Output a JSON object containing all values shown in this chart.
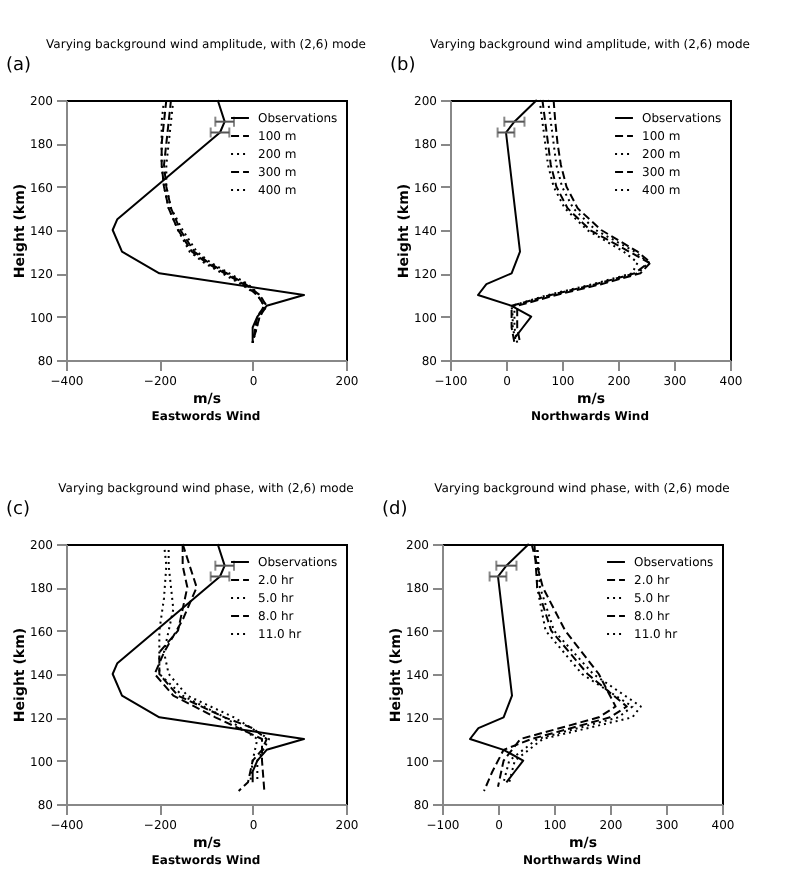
{
  "chart_data": [
    {
      "type": "line",
      "title": "Varying background wind amplitude, with (2,6) mode",
      "xlabel": "m/s",
      "ylabel": "Height (km)",
      "annotations": [
        "(a)",
        "Eastwords Wind"
      ],
      "xlim": [
        -400,
        200
      ],
      "xticks": [
        -400,
        -200,
        0,
        200
      ],
      "ylim": [
        80,
        200
      ],
      "yticks": [
        80,
        100,
        120,
        140,
        160,
        180,
        200
      ],
      "legend": "top right",
      "grid": false,
      "series": [
        {
          "name": "Observations",
          "color": "#000000",
          "line_style": "solid",
          "x": [
            -75,
            -60,
            -70,
            -290,
            -300,
            -280,
            -200,
            110,
            30,
            10,
            0,
            0
          ],
          "values": [
            200,
            190,
            185,
            145,
            140,
            130,
            120,
            110,
            105,
            100,
            95,
            88
          ],
          "xerrors": [
            null,
            20,
            20,
            null,
            null,
            null,
            null,
            null,
            null,
            null,
            null,
            null
          ]
        },
        {
          "name": "100 m",
          "color": "#000000",
          "line_style": "dashed",
          "x": [
            -185,
            -190,
            -195,
            -195,
            -190,
            -180,
            -160,
            -130,
            -100,
            -60,
            -20,
            10,
            25,
            10,
            0
          ],
          "values": [
            200,
            190,
            180,
            170,
            160,
            150,
            140,
            130,
            125,
            120,
            115,
            110,
            105,
            100,
            88
          ]
        },
        {
          "name": "200 m",
          "color": "#000000",
          "line_style": "dotted",
          "x": [
            -190,
            -195,
            -195,
            -195,
            -190,
            -180,
            -160,
            -135,
            -105,
            -65,
            -25,
            10,
            25,
            10,
            0
          ],
          "values": [
            200,
            190,
            180,
            170,
            160,
            150,
            140,
            130,
            125,
            120,
            115,
            110,
            105,
            100,
            88
          ]
        },
        {
          "name": "300 m",
          "color": "#000000",
          "line_style": "dashed",
          "x": [
            -175,
            -180,
            -185,
            -190,
            -185,
            -175,
            -155,
            -125,
            -95,
            -55,
            -15,
            15,
            30,
            15,
            0
          ],
          "values": [
            200,
            190,
            180,
            170,
            160,
            150,
            140,
            130,
            125,
            120,
            115,
            110,
            105,
            100,
            88
          ]
        },
        {
          "name": "400 m",
          "color": "#000000",
          "line_style": "dotted",
          "x": [
            -170,
            -175,
            -180,
            -185,
            -185,
            -175,
            -150,
            -120,
            -90,
            -50,
            -10,
            15,
            30,
            15,
            0
          ],
          "values": [
            200,
            190,
            180,
            170,
            160,
            150,
            140,
            130,
            125,
            120,
            115,
            110,
            105,
            100,
            88
          ]
        }
      ]
    },
    {
      "type": "line",
      "title": "Varying background wind amplitude, with (2,6) mode",
      "xlabel": "m/s",
      "ylabel": "Height (km)",
      "annotations": [
        "(b)",
        "Northwards Wind"
      ],
      "xlim": [
        -100,
        400
      ],
      "xticks": [
        -100,
        0,
        100,
        200,
        300,
        400
      ],
      "ylim": [
        80,
        200
      ],
      "yticks": [
        80,
        100,
        120,
        140,
        160,
        180,
        200
      ],
      "legend": "top right",
      "grid": false,
      "series": [
        {
          "name": "Observations",
          "color": "#000000",
          "line_style": "solid",
          "x": [
            55,
            15,
            0,
            25,
            10,
            -35,
            -50,
            10,
            45,
            30,
            15
          ],
          "values": [
            200,
            190,
            185,
            130,
            120,
            115,
            110,
            105,
            100,
            95,
            90
          ],
          "xerrors": [
            null,
            18,
            15,
            null,
            null,
            null,
            null,
            null,
            null,
            null,
            null
          ]
        },
        {
          "name": "100 m",
          "color": "#000000",
          "line_style": "dashed",
          "x": [
            65,
            70,
            75,
            80,
            90,
            110,
            150,
            220,
            255,
            230,
            160,
            80,
            10,
            10,
            10,
            15
          ],
          "values": [
            200,
            190,
            180,
            170,
            160,
            150,
            140,
            130,
            125,
            120,
            115,
            110,
            105,
            100,
            95,
            88
          ]
        },
        {
          "name": "200 m",
          "color": "#000000",
          "line_style": "dotted",
          "x": [
            75,
            80,
            85,
            90,
            100,
            120,
            160,
            230,
            255,
            235,
            165,
            85,
            15,
            15,
            15,
            20
          ],
          "values": [
            200,
            190,
            180,
            170,
            160,
            150,
            140,
            130,
            125,
            120,
            115,
            110,
            105,
            100,
            95,
            88
          ]
        },
        {
          "name": "300 m",
          "color": "#000000",
          "line_style": "dashed",
          "x": [
            85,
            88,
            92,
            98,
            108,
            128,
            170,
            235,
            258,
            240,
            170,
            90,
            20,
            20,
            20,
            25
          ],
          "values": [
            200,
            190,
            180,
            170,
            160,
            150,
            140,
            130,
            125,
            120,
            115,
            110,
            105,
            100,
            95,
            88
          ]
        },
        {
          "name": "400 m",
          "color": "#000000",
          "line_style": "dotted",
          "x": [
            60,
            65,
            70,
            75,
            85,
            105,
            145,
            210,
            235,
            225,
            155,
            75,
            10,
            12,
            12,
            18
          ],
          "values": [
            200,
            190,
            180,
            170,
            160,
            150,
            140,
            130,
            125,
            120,
            115,
            110,
            105,
            100,
            95,
            88
          ]
        }
      ]
    },
    {
      "type": "line",
      "title": "Varying background wind phase, with (2,6) mode",
      "xlabel": "m/s",
      "ylabel": "Height (km)",
      "annotations": [
        "(c)",
        "Eastwords Wind"
      ],
      "xlim": [
        -400,
        200
      ],
      "xticks": [
        -400,
        -200,
        0,
        200
      ],
      "ylim": [
        80,
        200
      ],
      "yticks": [
        80,
        100,
        120,
        140,
        160,
        180,
        200
      ],
      "legend": "top right",
      "grid": false,
      "series": [
        {
          "name": "Observations",
          "color": "#000000",
          "line_style": "solid",
          "x": [
            -75,
            -60,
            -70,
            -290,
            -300,
            -280,
            -200,
            110,
            30,
            10,
            0,
            0
          ],
          "values": [
            200,
            190,
            185,
            145,
            140,
            130,
            120,
            110,
            105,
            100,
            95,
            90
          ],
          "xerrors": [
            null,
            20,
            20,
            null,
            null,
            null,
            null,
            null,
            null,
            null,
            null,
            null
          ]
        },
        {
          "name": "2.0 hr",
          "color": "#000000",
          "line_style": "dashed",
          "x": [
            -150,
            -150,
            -140,
            -150,
            -160,
            -200,
            -200,
            -160,
            -60,
            0,
            30,
            20,
            0,
            -10,
            -30
          ],
          "values": [
            200,
            190,
            180,
            170,
            160,
            150,
            140,
            130,
            120,
            115,
            110,
            105,
            100,
            90,
            86
          ]
        },
        {
          "name": "5.0 hr",
          "color": "#000000",
          "line_style": "dotted",
          "x": [
            -180,
            -180,
            -170,
            -190,
            -180,
            -140,
            -40,
            35,
            10,
            10
          ],
          "values": [
            200,
            190,
            170,
            150,
            140,
            130,
            120,
            110,
            100,
            90
          ]
        },
        {
          "name": "8.0 hr",
          "color": "#000000",
          "line_style": "dashed",
          "x": [
            -150,
            -120,
            -150,
            -190,
            -210,
            -170,
            -80,
            20,
            20,
            25
          ],
          "values": [
            200,
            180,
            165,
            150,
            140,
            130,
            120,
            110,
            100,
            86
          ]
        },
        {
          "name": "11.0 hr",
          "color": "#000000",
          "line_style": "dotted",
          "x": [
            -190,
            -185,
            -190,
            -200,
            -200,
            -150,
            -60,
            10,
            0,
            -5
          ],
          "values": [
            200,
            190,
            175,
            160,
            140,
            130,
            120,
            110,
            100,
            90
          ]
        }
      ]
    },
    {
      "type": "line",
      "title": "Varying background wind phase, with (2,6) mode",
      "xlabel": "m/s",
      "ylabel": "Height (km)",
      "annotations": [
        "(d)",
        "Northwards Wind"
      ],
      "xlim": [
        -100,
        400
      ],
      "xticks": [
        -100,
        0,
        100,
        200,
        300,
        400
      ],
      "ylim": [
        80,
        200
      ],
      "yticks": [
        80,
        100,
        120,
        140,
        160,
        180,
        200
      ],
      "legend": "top right",
      "grid": false,
      "series": [
        {
          "name": "Observations",
          "color": "#000000",
          "line_style": "solid",
          "x": [
            55,
            15,
            0,
            25,
            10,
            -35,
            -50,
            10,
            45,
            30,
            15
          ],
          "values": [
            200,
            190,
            185,
            130,
            120,
            115,
            110,
            105,
            100,
            95,
            90
          ],
          "xerrors": [
            null,
            18,
            15,
            null,
            null,
            null,
            null,
            null,
            null,
            null,
            null
          ]
        },
        {
          "name": "2.0 hr",
          "color": "#000000",
          "line_style": "dashed",
          "x": [
            65,
            70,
            95,
            160,
            230,
            200,
            60,
            10,
            -10,
            -25
          ],
          "values": [
            200,
            180,
            160,
            140,
            125,
            120,
            110,
            105,
            95,
            86
          ]
        },
        {
          "name": "5.0 hr",
          "color": "#000000",
          "line_style": "dotted",
          "x": [
            70,
            75,
            100,
            170,
            255,
            240,
            80,
            30,
            20
          ],
          "values": [
            200,
            180,
            160,
            140,
            125,
            120,
            110,
            100,
            90
          ]
        },
        {
          "name": "8.0 hr",
          "color": "#000000",
          "line_style": "dashed",
          "x": [
            60,
            80,
            120,
            180,
            210,
            180,
            40,
            10,
            0
          ],
          "values": [
            200,
            180,
            160,
            140,
            125,
            120,
            110,
            100,
            88
          ]
        },
        {
          "name": "11.0 hr",
          "color": "#000000",
          "line_style": "dotted",
          "x": [
            70,
            70,
            85,
            150,
            240,
            215,
            70,
            20,
            10
          ],
          "values": [
            200,
            180,
            160,
            140,
            125,
            120,
            110,
            100,
            90
          ]
        }
      ]
    }
  ]
}
